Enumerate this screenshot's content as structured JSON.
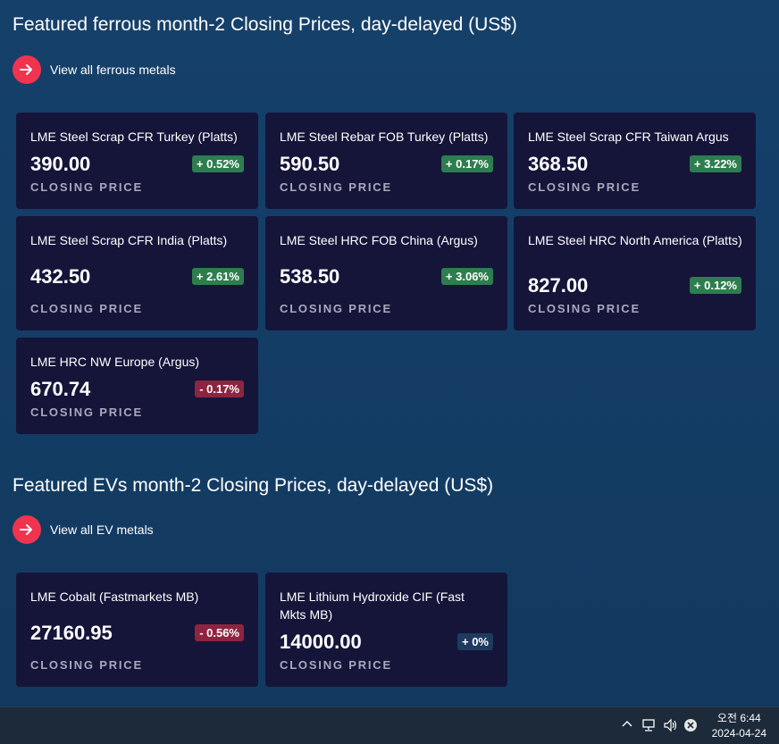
{
  "ferrous": {
    "title": "Featured ferrous month-2 Closing Prices, day-delayed (US$)",
    "view_all": "View all ferrous metals",
    "cards": [
      {
        "name": "LME Steel Scrap CFR Turkey (Platts)",
        "price": "390.00",
        "change": "+ 0.52%",
        "trend": "up",
        "label": "CLOSING PRICE"
      },
      {
        "name": "LME Steel Rebar FOB Turkey (Platts)",
        "price": "590.50",
        "change": "+ 0.17%",
        "trend": "up",
        "label": "CLOSING PRICE"
      },
      {
        "name": "LME Steel Scrap CFR Taiwan Argus",
        "price": "368.50",
        "change": "+ 3.22%",
        "trend": "up",
        "label": "CLOSING PRICE"
      },
      {
        "name": "LME Steel Scrap CFR India (Platts)",
        "price": "432.50",
        "change": "+ 2.61%",
        "trend": "up",
        "label": "CLOSING PRICE"
      },
      {
        "name": "LME Steel HRC FOB China (Argus)",
        "price": "538.50",
        "change": "+ 3.06%",
        "trend": "up",
        "label": "CLOSING PRICE"
      },
      {
        "name": "LME Steel HRC North America (Platts)",
        "price": "827.00",
        "change": "+ 0.12%",
        "trend": "up",
        "label": "CLOSING PRICE"
      },
      {
        "name": "LME HRC NW Europe (Argus)",
        "price": "670.74",
        "change": "- 0.17%",
        "trend": "down",
        "label": "CLOSING PRICE"
      }
    ]
  },
  "ev": {
    "title": "Featured EVs month-2 Closing Prices, day-delayed (US$)",
    "view_all": "View all EV metals",
    "cards": [
      {
        "name": "LME Cobalt (Fastmarkets MB)",
        "price": "27160.95",
        "change": "- 0.56%",
        "trend": "down",
        "label": "CLOSING PRICE"
      },
      {
        "name": "LME Lithium Hydroxide CIF (Fast Mkts MB)",
        "price": "14000.00",
        "change": "+ 0%",
        "trend": "flat",
        "label": "CLOSING PRICE"
      }
    ]
  },
  "taskbar": {
    "time": "오전 6:44",
    "date": "2024-04-24",
    "icons": [
      "chevron-up-icon",
      "network-icon",
      "volume-icon",
      "close-circle-icon"
    ]
  }
}
